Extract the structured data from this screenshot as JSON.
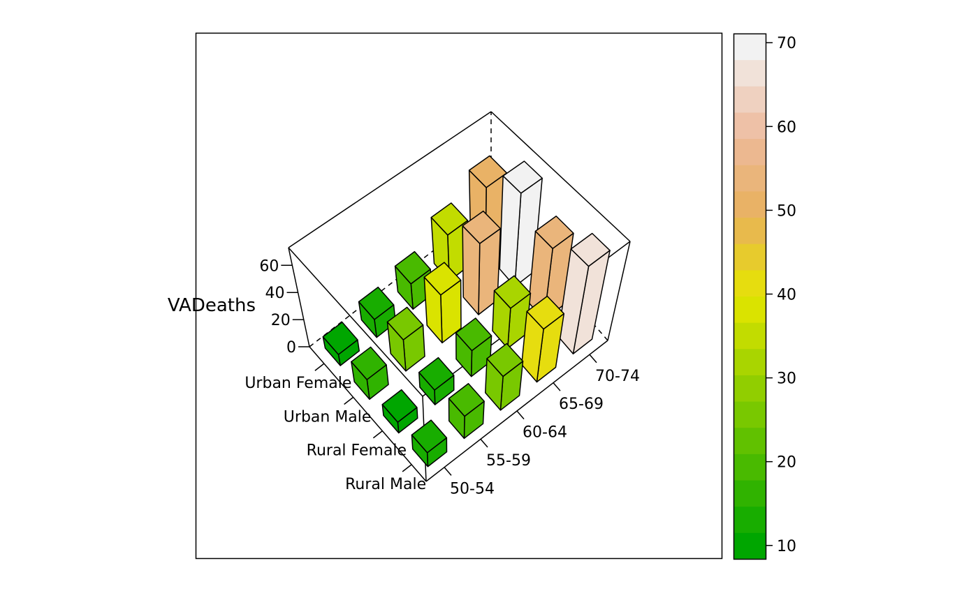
{
  "chart_data": {
    "type": "bar3d",
    "zlabel": "VADeaths",
    "row_labels": [
      "50-54",
      "55-59",
      "60-64",
      "65-69",
      "70-74"
    ],
    "column_labels": [
      "Rural Male",
      "Rural Female",
      "Urban Male",
      "Urban Female"
    ],
    "values": [
      [
        11.7,
        8.7,
        15.4,
        8.4
      ],
      [
        18.1,
        11.7,
        24.3,
        13.6
      ],
      [
        26.9,
        20.3,
        37.0,
        19.3
      ],
      [
        41.0,
        30.9,
        54.6,
        35.1
      ],
      [
        66.0,
        54.3,
        71.1,
        50.0
      ]
    ],
    "z_ticks": [
      0,
      20,
      40,
      60
    ],
    "zlim": [
      0,
      73
    ],
    "colorkey": {
      "ticks": [
        10,
        20,
        30,
        40,
        50,
        60,
        70
      ],
      "range": [
        8.4,
        71.1
      ],
      "bands": 20,
      "palette": "terrain",
      "colors": [
        "#00A600",
        "#E6E600",
        "#E8B05C",
        "#EDBA9C",
        "#F2F2F2"
      ]
    }
  }
}
